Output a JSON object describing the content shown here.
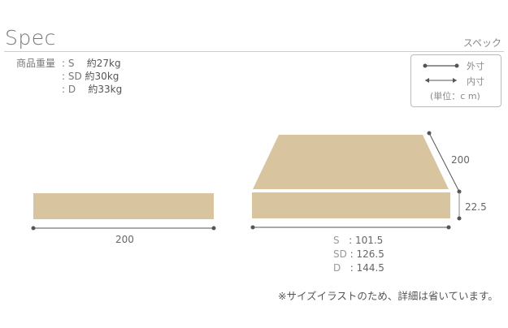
{
  "header": {
    "title": "Spec",
    "subtitle": "スペック"
  },
  "weight": {
    "label": "商品重量",
    "rows": [
      {
        "size": "S",
        "value": "約27kg"
      },
      {
        "size": "SD",
        "value": "約30kg"
      },
      {
        "size": "D",
        "value": "約33kg"
      }
    ]
  },
  "legend": {
    "outer": "外寸",
    "inner": "内寸",
    "unit": "(単位：c m)"
  },
  "side_view": {
    "length": "200"
  },
  "perspective_view": {
    "depth": "200",
    "height": "22.5",
    "widths": [
      {
        "size": "S",
        "value": "101.5"
      },
      {
        "size": "SD",
        "value": "126.5"
      },
      {
        "size": "D",
        "value": "144.5"
      }
    ]
  },
  "note": "※サイズイラストのため、詳細は省いています。",
  "colors": {
    "mattress": "#d9c4a0",
    "line": "#555555"
  }
}
